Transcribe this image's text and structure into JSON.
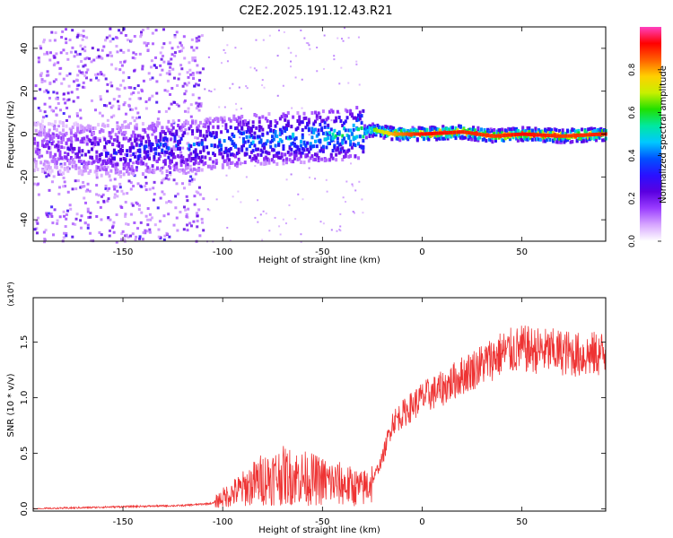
{
  "title": "C2E2.2025.191.12.43.R21",
  "chart_data": [
    {
      "type": "heatmap",
      "xlabel": "Height of straight line (km)",
      "ylabel": "Frequency (Hz)",
      "xlim": [
        -195,
        92
      ],
      "ylim": [
        -50,
        50
      ],
      "x_ticks": [
        -150,
        -100,
        -50,
        0,
        50
      ],
      "y_ticks": [
        -40,
        -20,
        0,
        20,
        40
      ],
      "colorbar": {
        "label": "Normalized spectral amplitude",
        "range": [
          0,
          1
        ],
        "ticks": [
          "0.0",
          "0.2",
          "0.4",
          "0.6",
          "0.8"
        ],
        "colors": [
          "#ffffff",
          "#d7a6ff",
          "#9a3dff",
          "#5a00e0",
          "#2a10ff",
          "#0050ff",
          "#00c8ff",
          "#00e8a0",
          "#20e000",
          "#c8f000",
          "#ffd000",
          "#ff6000",
          "#ff0000",
          "#ff40c0"
        ]
      },
      "ridge": [
        {
          "x": -190,
          "y": -6,
          "amp": 0.18
        },
        {
          "x": -170,
          "y": -7,
          "amp": 0.25
        },
        {
          "x": -150,
          "y": -8,
          "amp": 0.32
        },
        {
          "x": -130,
          "y": -6,
          "amp": 0.36
        },
        {
          "x": -110,
          "y": -5,
          "amp": 0.38
        },
        {
          "x": -90,
          "y": -3,
          "amp": 0.42
        },
        {
          "x": -70,
          "y": -2,
          "amp": 0.45
        },
        {
          "x": -50,
          "y": -1,
          "amp": 0.48
        },
        {
          "x": -35,
          "y": 0,
          "amp": 0.52
        },
        {
          "x": -25,
          "y": 2,
          "amp": 0.65
        },
        {
          "x": -15,
          "y": 0,
          "amp": 0.8
        },
        {
          "x": 0,
          "y": 0,
          "amp": 0.92
        },
        {
          "x": 20,
          "y": 1,
          "amp": 0.9
        },
        {
          "x": 35,
          "y": -1,
          "amp": 0.88
        },
        {
          "x": 50,
          "y": 0,
          "amp": 0.92
        },
        {
          "x": 70,
          "y": -1,
          "amp": 0.88
        },
        {
          "x": 90,
          "y": 0,
          "amp": 0.9
        }
      ]
    },
    {
      "type": "line",
      "xlabel": "Height of straight line (km)",
      "ylabel": "SNR (10 * v/v)",
      "y_multiplier": "(x10⁴)",
      "xlim": [
        -195,
        92
      ],
      "ylim": [
        -0.02,
        1.9
      ],
      "x_ticks": [
        -150,
        -100,
        -50,
        0,
        50
      ],
      "y_ticks": [
        "0.0",
        "0.5",
        "1.0",
        "1.5"
      ],
      "line_color": "#ee3333",
      "series": [
        {
          "x": [
            -195,
            -150,
            -120,
            -105,
            -100,
            -90,
            -80,
            -70,
            -60,
            -50,
            -40,
            -30,
            -25,
            -20,
            -15,
            -10,
            0,
            10,
            20,
            30,
            40,
            50,
            60,
            70,
            80,
            92
          ],
          "y": [
            0.0,
            0.02,
            0.03,
            0.05,
            0.1,
            0.18,
            0.27,
            0.3,
            0.28,
            0.25,
            0.22,
            0.18,
            0.25,
            0.45,
            0.78,
            0.85,
            1.0,
            1.08,
            1.2,
            1.3,
            1.4,
            1.44,
            1.42,
            1.41,
            1.38,
            1.4
          ]
        }
      ]
    }
  ]
}
